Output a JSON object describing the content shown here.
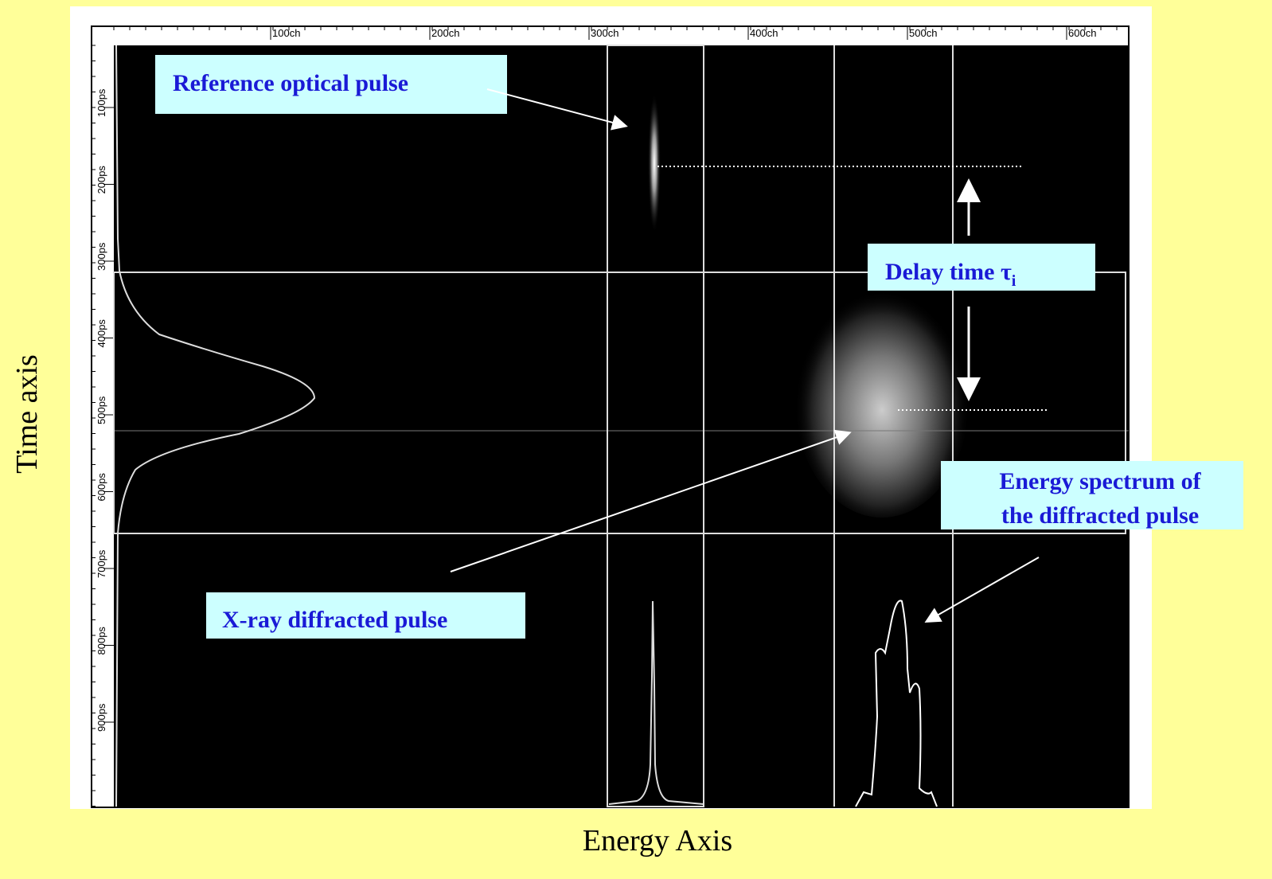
{
  "x_axis": {
    "label": "Energy Axis",
    "ticks": [
      "100ch",
      "200ch",
      "300ch",
      "400ch",
      "500ch",
      "600ch"
    ]
  },
  "y_axis": {
    "label": "Time axis",
    "ticks": [
      "100ps",
      "200ps",
      "300ps",
      "400ps",
      "500ps",
      "600ps",
      "700ps",
      "800ps",
      "900ps"
    ]
  },
  "annotations": {
    "reference": "Reference optical pulse",
    "delay": {
      "text": "Delay time τ",
      "subscript": "i"
    },
    "spectrum": [
      "Energy spectrum of",
      "the diffracted pulse"
    ],
    "xray": "X-ray diffracted pulse"
  }
}
